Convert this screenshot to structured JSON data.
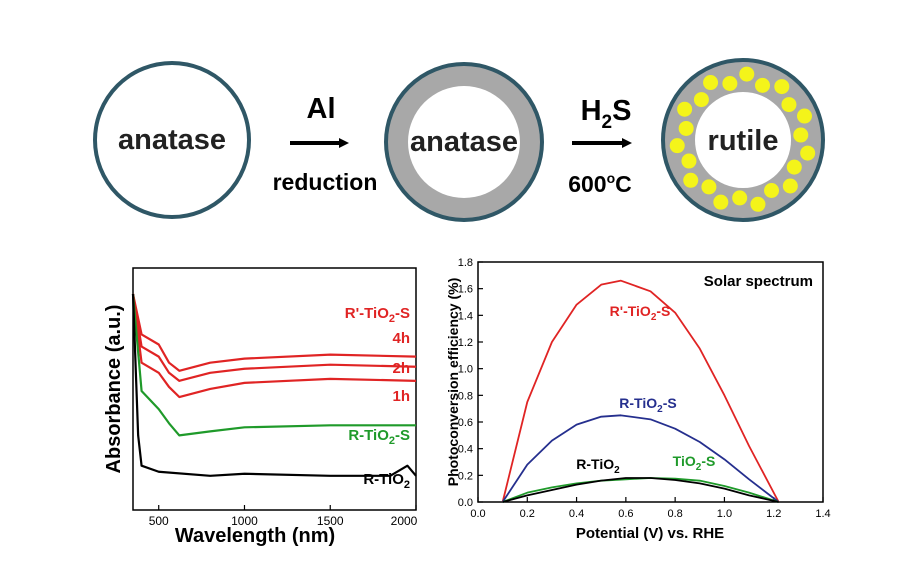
{
  "schematic": {
    "step1": {
      "label": "anatase"
    },
    "arrow1": {
      "top": "Al",
      "bottom": "reduction"
    },
    "step2": {
      "label": "anatase"
    },
    "arrow2": {
      "top_main": "H",
      "top_sub": "2",
      "top_tail": "S",
      "bottom_main": "600",
      "bottom_sup": "o",
      "bottom_tail": "C"
    },
    "step3": {
      "label": "rutile",
      "dots": 22
    }
  },
  "colors": {
    "ring": "#2f5766",
    "shell": "#a8a8a8",
    "dot": "#f4f41a",
    "red": "#e02424",
    "green": "#1f9a2a",
    "navy": "#252f8e",
    "black": "#000000"
  },
  "chart_data": [
    {
      "type": "line",
      "xlabel": "Wavelength (nm)",
      "ylabel": "Absorbance (a.u.)",
      "xlim": [
        350,
        2000
      ],
      "ylim": [
        0,
        1
      ],
      "xticks": [
        "500",
        "1000",
        "1500",
        "2000"
      ],
      "y_tick_labels": false,
      "labels": [
        {
          "text": "R'-TiO",
          "sub": "2",
          "tail": "-S",
          "color": "red"
        },
        {
          "text": "4h",
          "color": "red"
        },
        {
          "text": "2h",
          "color": "red"
        },
        {
          "text": "1h",
          "color": "red"
        },
        {
          "text": "R-TiO",
          "sub": "2",
          "tail": "-S",
          "color": "green"
        },
        {
          "text": "R-TiO",
          "sub": "2",
          "tail": "",
          "color": "black"
        }
      ],
      "series": [
        {
          "color": "red",
          "x": [
            350,
            400,
            500,
            560,
            620,
            800,
            1000,
            1500,
            2000
          ],
          "y": [
            1.0,
            0.8,
            0.75,
            0.66,
            0.62,
            0.66,
            0.68,
            0.7,
            0.69
          ]
        },
        {
          "color": "red",
          "x": [
            350,
            400,
            500,
            560,
            620,
            800,
            1000,
            1500,
            2000
          ],
          "y": [
            1.0,
            0.74,
            0.69,
            0.61,
            0.57,
            0.61,
            0.63,
            0.65,
            0.64
          ]
        },
        {
          "color": "red",
          "x": [
            350,
            400,
            500,
            560,
            620,
            800,
            1000,
            1500,
            2000
          ],
          "y": [
            1.0,
            0.66,
            0.61,
            0.54,
            0.49,
            0.53,
            0.56,
            0.58,
            0.57
          ]
        },
        {
          "color": "green",
          "x": [
            350,
            400,
            500,
            560,
            620,
            800,
            1000,
            1500,
            2000
          ],
          "y": [
            1.0,
            0.52,
            0.43,
            0.36,
            0.3,
            0.32,
            0.34,
            0.35,
            0.35
          ]
        },
        {
          "color": "black",
          "x": [
            350,
            380,
            400,
            500,
            800,
            1000,
            1500,
            1850,
            1950,
            2000
          ],
          "y": [
            1.0,
            0.3,
            0.15,
            0.12,
            0.1,
            0.11,
            0.1,
            0.1,
            0.15,
            0.1
          ]
        }
      ]
    },
    {
      "type": "line",
      "title": "Solar spectrum",
      "xlabel": "Potential (V) vs. RHE",
      "ylabel": "Photoconversion efficiency (%)",
      "xlim": [
        0.0,
        1.4
      ],
      "ylim": [
        0.0,
        1.8
      ],
      "xticks": [
        "0.0",
        "0.2",
        "0.4",
        "0.6",
        "0.8",
        "1.0",
        "1.2",
        "1.4"
      ],
      "yticks": [
        "0.0",
        "0.2",
        "0.4",
        "0.6",
        "0.8",
        "1.0",
        "1.2",
        "1.4",
        "1.6",
        "1.8"
      ],
      "series": [
        {
          "name": "R'-TiO2-S",
          "label_main": "R'-TiO",
          "label_sub": "2",
          "label_tail": "-S",
          "color": "red",
          "x": [
            0.1,
            0.2,
            0.3,
            0.4,
            0.5,
            0.58,
            0.7,
            0.8,
            0.9,
            1.0,
            1.1,
            1.22
          ],
          "y": [
            0.0,
            0.75,
            1.2,
            1.48,
            1.63,
            1.66,
            1.58,
            1.42,
            1.15,
            0.8,
            0.42,
            0.0
          ]
        },
        {
          "name": "R-TiO2-S",
          "label_main": "R-TiO",
          "label_sub": "2",
          "label_tail": "-S",
          "color": "navy",
          "x": [
            0.1,
            0.2,
            0.3,
            0.4,
            0.5,
            0.58,
            0.7,
            0.8,
            0.9,
            1.0,
            1.1,
            1.22
          ],
          "y": [
            0.0,
            0.28,
            0.46,
            0.58,
            0.64,
            0.65,
            0.62,
            0.55,
            0.45,
            0.32,
            0.17,
            0.0
          ]
        },
        {
          "name": "TiO2-S",
          "label_main": "TiO",
          "label_sub": "2",
          "label_tail": "-S",
          "color": "green",
          "x": [
            0.1,
            0.2,
            0.3,
            0.4,
            0.5,
            0.6,
            0.7,
            0.8,
            0.9,
            1.0,
            1.1,
            1.22
          ],
          "y": [
            0.0,
            0.07,
            0.11,
            0.14,
            0.16,
            0.17,
            0.18,
            0.175,
            0.16,
            0.12,
            0.07,
            0.0
          ]
        },
        {
          "name": "R-TiO2",
          "label_main": "R-TiO",
          "label_sub": "2",
          "label_tail": "",
          "color": "black",
          "x": [
            0.1,
            0.2,
            0.3,
            0.4,
            0.5,
            0.6,
            0.7,
            0.8,
            0.9,
            1.0,
            1.1,
            1.22
          ],
          "y": [
            0.0,
            0.05,
            0.09,
            0.13,
            0.16,
            0.18,
            0.18,
            0.165,
            0.14,
            0.1,
            0.05,
            0.0
          ]
        }
      ]
    }
  ]
}
